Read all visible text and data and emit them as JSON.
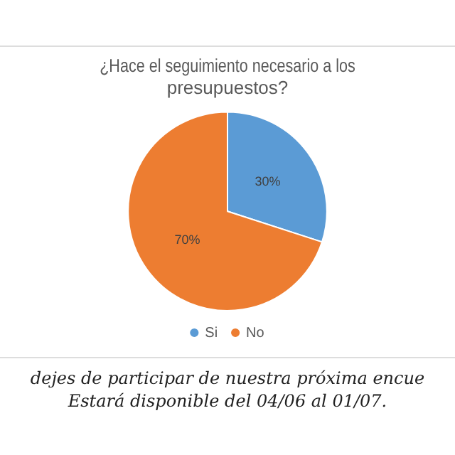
{
  "chart_data": {
    "type": "pie",
    "title": "¿Hace el seguimiento necesario a los presupuestos?",
    "categories": [
      "Si",
      "No"
    ],
    "values": [
      30,
      70
    ],
    "colors": [
      "#5b9bd5",
      "#ed7d31"
    ],
    "value_labels": [
      "30%",
      "70%"
    ],
    "legend": "bottom",
    "annotations": [
      "dejes de participar de nuestra próxima encue",
      "Estará disponible del 04/06 al 01/07."
    ]
  }
}
